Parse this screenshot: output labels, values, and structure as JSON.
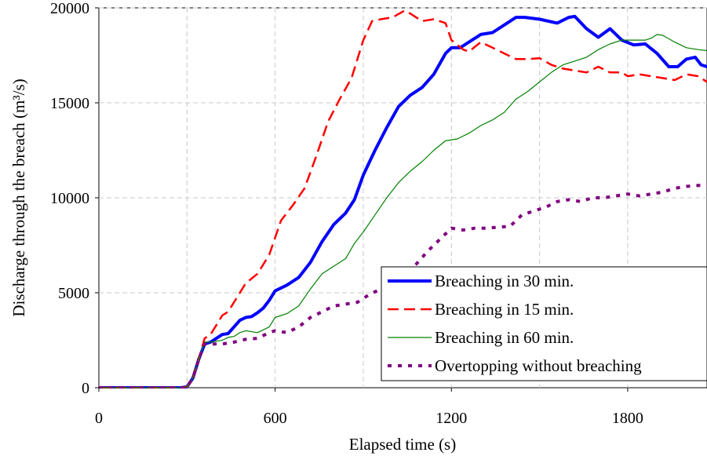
{
  "chart_data": {
    "type": "line",
    "title": "",
    "xlabel": "Elapsed time (s)",
    "ylabel": "Discharge through the breach (m³/s)",
    "xlim": [
      0,
      2070
    ],
    "ylim": [
      0,
      20000
    ],
    "x_ticks": [
      0,
      600,
      1200,
      1800
    ],
    "y_ticks": [
      0,
      5000,
      10000,
      15000,
      20000
    ],
    "grid": true,
    "legend_position": "bottom-right",
    "series": [
      {
        "name": "Breaching in 30 min.",
        "color": "#0000ff",
        "style": "solid-thick",
        "points": [
          [
            0,
            0
          ],
          [
            280,
            0
          ],
          [
            300,
            50
          ],
          [
            320,
            500
          ],
          [
            340,
            1500
          ],
          [
            360,
            2300
          ],
          [
            380,
            2400
          ],
          [
            400,
            2600
          ],
          [
            420,
            2800
          ],
          [
            440,
            2850
          ],
          [
            460,
            3200
          ],
          [
            480,
            3550
          ],
          [
            500,
            3700
          ],
          [
            520,
            3750
          ],
          [
            540,
            3950
          ],
          [
            560,
            4200
          ],
          [
            580,
            4600
          ],
          [
            600,
            5100
          ],
          [
            640,
            5400
          ],
          [
            680,
            5800
          ],
          [
            720,
            6600
          ],
          [
            760,
            7700
          ],
          [
            800,
            8600
          ],
          [
            840,
            9200
          ],
          [
            870,
            9900
          ],
          [
            900,
            11200
          ],
          [
            940,
            12500
          ],
          [
            980,
            13700
          ],
          [
            1020,
            14800
          ],
          [
            1060,
            15400
          ],
          [
            1100,
            15800
          ],
          [
            1140,
            16500
          ],
          [
            1180,
            17600
          ],
          [
            1200,
            17900
          ],
          [
            1230,
            17900
          ],
          [
            1260,
            18200
          ],
          [
            1300,
            18600
          ],
          [
            1340,
            18700
          ],
          [
            1380,
            19100
          ],
          [
            1420,
            19500
          ],
          [
            1450,
            19500
          ],
          [
            1500,
            19400
          ],
          [
            1560,
            19200
          ],
          [
            1600,
            19500
          ],
          [
            1620,
            19550
          ],
          [
            1660,
            18900
          ],
          [
            1700,
            18450
          ],
          [
            1740,
            18900
          ],
          [
            1780,
            18300
          ],
          [
            1820,
            18050
          ],
          [
            1860,
            18100
          ],
          [
            1900,
            17600
          ],
          [
            1940,
            16900
          ],
          [
            1970,
            16900
          ],
          [
            2000,
            17300
          ],
          [
            2030,
            17400
          ],
          [
            2050,
            17000
          ],
          [
            2070,
            16900
          ]
        ]
      },
      {
        "name": "Breaching in 15 min.",
        "color": "#ff0000",
        "style": "dashed",
        "points": [
          [
            0,
            0
          ],
          [
            280,
            0
          ],
          [
            300,
            50
          ],
          [
            320,
            500
          ],
          [
            340,
            1500
          ],
          [
            360,
            2600
          ],
          [
            380,
            2800
          ],
          [
            400,
            3300
          ],
          [
            420,
            3800
          ],
          [
            440,
            4000
          ],
          [
            460,
            4500
          ],
          [
            480,
            5000
          ],
          [
            500,
            5500
          ],
          [
            540,
            6000
          ],
          [
            580,
            7000
          ],
          [
            620,
            8800
          ],
          [
            660,
            9600
          ],
          [
            700,
            10500
          ],
          [
            740,
            12200
          ],
          [
            780,
            14000
          ],
          [
            820,
            15200
          ],
          [
            860,
            16300
          ],
          [
            900,
            18300
          ],
          [
            930,
            19300
          ],
          [
            960,
            19400
          ],
          [
            1000,
            19500
          ],
          [
            1040,
            19850
          ],
          [
            1060,
            19700
          ],
          [
            1100,
            19300
          ],
          [
            1140,
            19400
          ],
          [
            1180,
            19200
          ],
          [
            1200,
            18300
          ],
          [
            1240,
            17800
          ],
          [
            1260,
            17700
          ],
          [
            1300,
            18200
          ],
          [
            1340,
            17900
          ],
          [
            1380,
            17600
          ],
          [
            1420,
            17300
          ],
          [
            1460,
            17300
          ],
          [
            1500,
            17350
          ],
          [
            1540,
            17000
          ],
          [
            1580,
            16800
          ],
          [
            1620,
            16700
          ],
          [
            1660,
            16600
          ],
          [
            1700,
            16900
          ],
          [
            1740,
            16600
          ],
          [
            1780,
            16600
          ],
          [
            1800,
            16400
          ],
          [
            1840,
            16500
          ],
          [
            1880,
            16400
          ],
          [
            1920,
            16300
          ],
          [
            1960,
            16200
          ],
          [
            2000,
            16500
          ],
          [
            2040,
            16400
          ],
          [
            2070,
            16100
          ]
        ]
      },
      {
        "name": "Breaching in 60 min.",
        "color": "#008000",
        "style": "solid-thin",
        "points": [
          [
            0,
            0
          ],
          [
            280,
            0
          ],
          [
            300,
            50
          ],
          [
            320,
            500
          ],
          [
            340,
            1500
          ],
          [
            360,
            2400
          ],
          [
            380,
            2400
          ],
          [
            400,
            2450
          ],
          [
            420,
            2500
          ],
          [
            440,
            2650
          ],
          [
            460,
            2700
          ],
          [
            480,
            2900
          ],
          [
            500,
            3000
          ],
          [
            540,
            2900
          ],
          [
            580,
            3200
          ],
          [
            600,
            3700
          ],
          [
            640,
            3900
          ],
          [
            680,
            4300
          ],
          [
            720,
            5200
          ],
          [
            760,
            6000
          ],
          [
            800,
            6400
          ],
          [
            840,
            6800
          ],
          [
            870,
            7600
          ],
          [
            900,
            8200
          ],
          [
            940,
            9100
          ],
          [
            980,
            10000
          ],
          [
            1020,
            10800
          ],
          [
            1060,
            11400
          ],
          [
            1100,
            11900
          ],
          [
            1140,
            12500
          ],
          [
            1180,
            13000
          ],
          [
            1220,
            13100
          ],
          [
            1260,
            13400
          ],
          [
            1300,
            13800
          ],
          [
            1340,
            14100
          ],
          [
            1380,
            14500
          ],
          [
            1420,
            15200
          ],
          [
            1460,
            15600
          ],
          [
            1500,
            16100
          ],
          [
            1540,
            16600
          ],
          [
            1580,
            17000
          ],
          [
            1620,
            17200
          ],
          [
            1660,
            17400
          ],
          [
            1700,
            17800
          ],
          [
            1740,
            18100
          ],
          [
            1780,
            18300
          ],
          [
            1820,
            18300
          ],
          [
            1860,
            18300
          ],
          [
            1880,
            18400
          ],
          [
            1900,
            18600
          ],
          [
            1920,
            18550
          ],
          [
            1960,
            18200
          ],
          [
            2000,
            17900
          ],
          [
            2040,
            17800
          ],
          [
            2070,
            17750
          ]
        ]
      },
      {
        "name": "Overtopping without breaching",
        "color": "#800080",
        "style": "dotted",
        "points": [
          [
            0,
            0
          ],
          [
            280,
            0
          ],
          [
            300,
            50
          ],
          [
            320,
            500
          ],
          [
            340,
            1500
          ],
          [
            360,
            2300
          ],
          [
            380,
            2300
          ],
          [
            420,
            2300
          ],
          [
            460,
            2400
          ],
          [
            500,
            2550
          ],
          [
            540,
            2600
          ],
          [
            580,
            2900
          ],
          [
            600,
            3000
          ],
          [
            640,
            2900
          ],
          [
            680,
            3200
          ],
          [
            720,
            3700
          ],
          [
            760,
            4000
          ],
          [
            800,
            4300
          ],
          [
            840,
            4400
          ],
          [
            880,
            4500
          ],
          [
            920,
            4900
          ],
          [
            960,
            5200
          ],
          [
            1000,
            5500
          ],
          [
            1040,
            5900
          ],
          [
            1080,
            6500
          ],
          [
            1120,
            7200
          ],
          [
            1160,
            7800
          ],
          [
            1200,
            8400
          ],
          [
            1240,
            8300
          ],
          [
            1280,
            8400
          ],
          [
            1320,
            8400
          ],
          [
            1360,
            8450
          ],
          [
            1400,
            8500
          ],
          [
            1440,
            9100
          ],
          [
            1480,
            9300
          ],
          [
            1520,
            9500
          ],
          [
            1560,
            9800
          ],
          [
            1600,
            9900
          ],
          [
            1640,
            9800
          ],
          [
            1680,
            10000
          ],
          [
            1720,
            10000
          ],
          [
            1760,
            10100
          ],
          [
            1800,
            10200
          ],
          [
            1840,
            10100
          ],
          [
            1880,
            10200
          ],
          [
            1920,
            10300
          ],
          [
            1960,
            10500
          ],
          [
            2000,
            10600
          ],
          [
            2040,
            10650
          ],
          [
            2070,
            10650
          ]
        ]
      }
    ]
  }
}
